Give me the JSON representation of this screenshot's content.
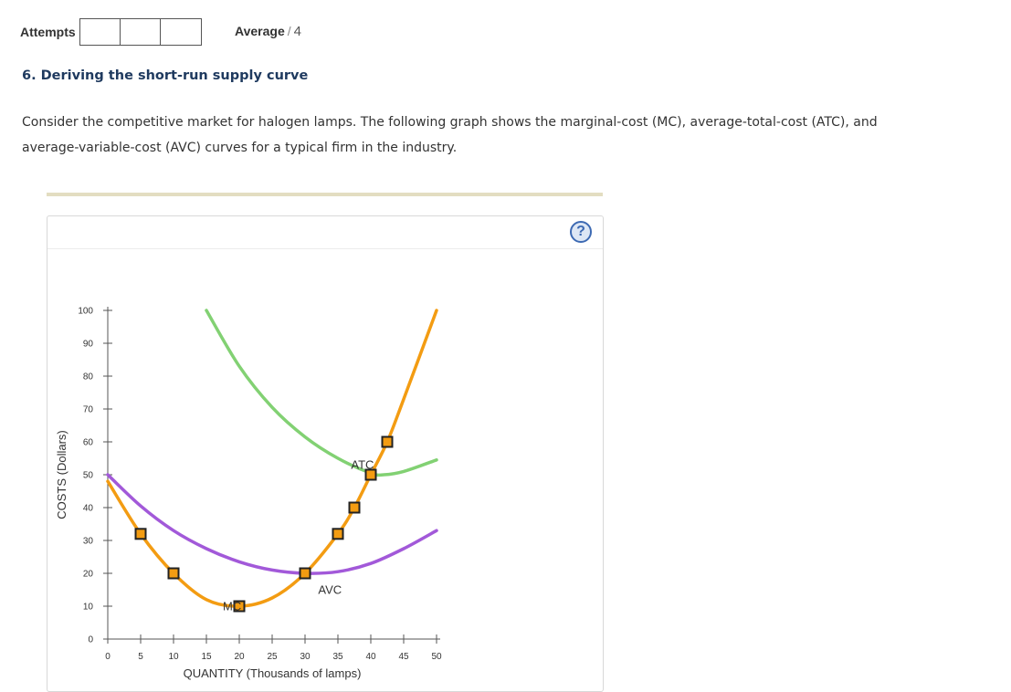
{
  "header": {
    "attempts_label": "Attempts",
    "attempt_boxes": 3,
    "average_label": "Average",
    "average_sep": "/",
    "average_value": "4"
  },
  "question": {
    "title": "6. Deriving the short-run supply curve",
    "text": "Consider the competitive market for halogen lamps. The following graph shows the marginal-cost (MC), average-total-cost (ATC), and average-variable-cost (AVC) curves for a typical firm in the industry."
  },
  "help": {
    "icon": "question-icon",
    "glyph": "?"
  },
  "chart_data": {
    "type": "line",
    "xlabel": "QUANTITY (Thousands of lamps)",
    "ylabel": "COSTS (Dollars)",
    "xlim": [
      0,
      50
    ],
    "ylim": [
      0,
      100
    ],
    "xticks": [
      0,
      5,
      10,
      15,
      20,
      25,
      30,
      35,
      40,
      45,
      50
    ],
    "yticks": [
      0,
      10,
      20,
      30,
      40,
      50,
      60,
      70,
      80,
      90,
      100
    ],
    "colors": {
      "MC": "#f39c12",
      "ATC": "#82d173",
      "AVC": "#a259d9",
      "marker_fill": "#f39c12",
      "marker_stroke": "#222222"
    },
    "series": [
      {
        "name": "MC",
        "points": [
          [
            0,
            48
          ],
          [
            5,
            32
          ],
          [
            10,
            20
          ],
          [
            15,
            12
          ],
          [
            20,
            10
          ],
          [
            25,
            12.5
          ],
          [
            30,
            20
          ],
          [
            35,
            32
          ],
          [
            37.5,
            40
          ],
          [
            40,
            50
          ],
          [
            42.5,
            60
          ],
          [
            45,
            73
          ],
          [
            50,
            100
          ]
        ]
      },
      {
        "name": "ATC",
        "points": [
          [
            15,
            100
          ],
          [
            20,
            83
          ],
          [
            25,
            70.5
          ],
          [
            30,
            61.5
          ],
          [
            35,
            55
          ],
          [
            40,
            50.5
          ],
          [
            42,
            50
          ],
          [
            45,
            51
          ],
          [
            50,
            54.5
          ]
        ]
      },
      {
        "name": "AVC",
        "points": [
          [
            0,
            50
          ],
          [
            5,
            40.5
          ],
          [
            10,
            33
          ],
          [
            15,
            27.5
          ],
          [
            20,
            23.5
          ],
          [
            25,
            21
          ],
          [
            30,
            20
          ],
          [
            35,
            20.5
          ],
          [
            40,
            23
          ],
          [
            45,
            27.5
          ],
          [
            50,
            33
          ]
        ]
      }
    ],
    "markers": [
      [
        5,
        32
      ],
      [
        10,
        20
      ],
      [
        20,
        10
      ],
      [
        30,
        20
      ],
      [
        35,
        32
      ],
      [
        37.5,
        40
      ],
      [
        40,
        50
      ],
      [
        42.5,
        60
      ]
    ],
    "labels": [
      {
        "text": "MC",
        "x": 17.5,
        "y": 10
      },
      {
        "text": "ATC",
        "x": 37,
        "y": 53
      },
      {
        "text": "AVC",
        "x": 32,
        "y": 15
      }
    ]
  }
}
